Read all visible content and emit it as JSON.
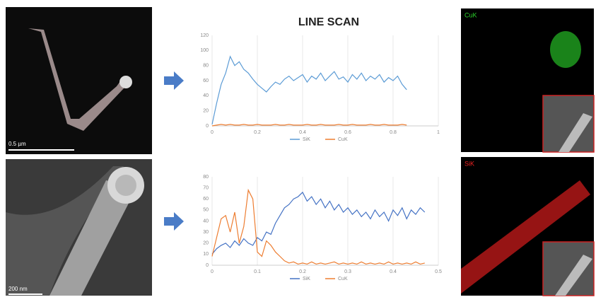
{
  "title": "LINE SCAN",
  "images": {
    "top_left_scale": "0.5 µm",
    "bottom_left_scale": "200 nm",
    "top_right_label": "CuK",
    "bottom_right_label": "SiK"
  },
  "chart_data": [
    {
      "type": "line",
      "xlim": [
        0,
        1
      ],
      "xticks": [
        0,
        0.2,
        0.4,
        0.6,
        0.8,
        1
      ],
      "ylim": [
        0,
        120
      ],
      "yticks": [
        0,
        20,
        40,
        60,
        80,
        100,
        120
      ],
      "grid": true,
      "legend": "bottom",
      "x": [
        0,
        0.02,
        0.04,
        0.06,
        0.08,
        0.1,
        0.12,
        0.14,
        0.16,
        0.18,
        0.2,
        0.22,
        0.24,
        0.26,
        0.28,
        0.3,
        0.32,
        0.34,
        0.36,
        0.38,
        0.4,
        0.42,
        0.44,
        0.46,
        0.48,
        0.5,
        0.52,
        0.54,
        0.56,
        0.58,
        0.6,
        0.62,
        0.64,
        0.66,
        0.68,
        0.7,
        0.72,
        0.74,
        0.76,
        0.78,
        0.8,
        0.82,
        0.84,
        0.86
      ],
      "series": [
        {
          "name": "SiK",
          "color": "#5b9bd5",
          "values": [
            2,
            30,
            55,
            70,
            92,
            80,
            85,
            75,
            70,
            62,
            55,
            50,
            45,
            52,
            58,
            55,
            62,
            66,
            60,
            64,
            68,
            58,
            66,
            62,
            70,
            60,
            66,
            72,
            62,
            65,
            58,
            68,
            62,
            70,
            60,
            66,
            62,
            68,
            58,
            64,
            60,
            66,
            55,
            48
          ]
        },
        {
          "name": "CuK",
          "color": "#ed7d31",
          "values": [
            0,
            1,
            2,
            1,
            2,
            1,
            1,
            2,
            1,
            1,
            2,
            1,
            1,
            1,
            2,
            1,
            1,
            2,
            1,
            1,
            1,
            2,
            1,
            1,
            2,
            1,
            1,
            1,
            2,
            1,
            1,
            2,
            1,
            1,
            1,
            2,
            1,
            1,
            2,
            1,
            1,
            1,
            2,
            1
          ]
        }
      ]
    },
    {
      "type": "line",
      "xlim": [
        0,
        0.5
      ],
      "xticks": [
        0,
        0.1,
        0.2,
        0.3,
        0.4,
        0.5
      ],
      "ylim": [
        0,
        80
      ],
      "yticks": [
        0,
        10,
        20,
        30,
        40,
        50,
        60,
        70,
        80
      ],
      "grid": true,
      "legend": "bottom",
      "x": [
        0,
        0.01,
        0.02,
        0.03,
        0.04,
        0.05,
        0.06,
        0.07,
        0.08,
        0.09,
        0.1,
        0.11,
        0.12,
        0.13,
        0.14,
        0.15,
        0.16,
        0.17,
        0.18,
        0.19,
        0.2,
        0.21,
        0.22,
        0.23,
        0.24,
        0.25,
        0.26,
        0.27,
        0.28,
        0.29,
        0.3,
        0.31,
        0.32,
        0.33,
        0.34,
        0.35,
        0.36,
        0.37,
        0.38,
        0.39,
        0.4,
        0.41,
        0.42,
        0.43,
        0.44,
        0.45,
        0.46,
        0.47
      ],
      "series": [
        {
          "name": "SiK",
          "color": "#4472c4",
          "values": [
            10,
            15,
            18,
            20,
            16,
            22,
            18,
            24,
            20,
            18,
            25,
            22,
            30,
            28,
            38,
            45,
            52,
            55,
            60,
            62,
            66,
            58,
            62,
            55,
            60,
            52,
            58,
            50,
            55,
            48,
            52,
            46,
            50,
            44,
            48,
            42,
            50,
            44,
            48,
            40,
            50,
            45,
            52,
            42,
            50,
            46,
            52,
            48
          ]
        },
        {
          "name": "CuK",
          "color": "#ed7d31",
          "values": [
            8,
            25,
            42,
            45,
            30,
            48,
            20,
            35,
            68,
            60,
            12,
            8,
            22,
            18,
            12,
            8,
            4,
            2,
            3,
            1,
            2,
            1,
            3,
            1,
            2,
            1,
            2,
            3,
            1,
            2,
            1,
            2,
            1,
            3,
            1,
            2,
            1,
            2,
            1,
            3,
            1,
            2,
            1,
            2,
            1,
            3,
            1,
            2
          ]
        }
      ]
    }
  ]
}
